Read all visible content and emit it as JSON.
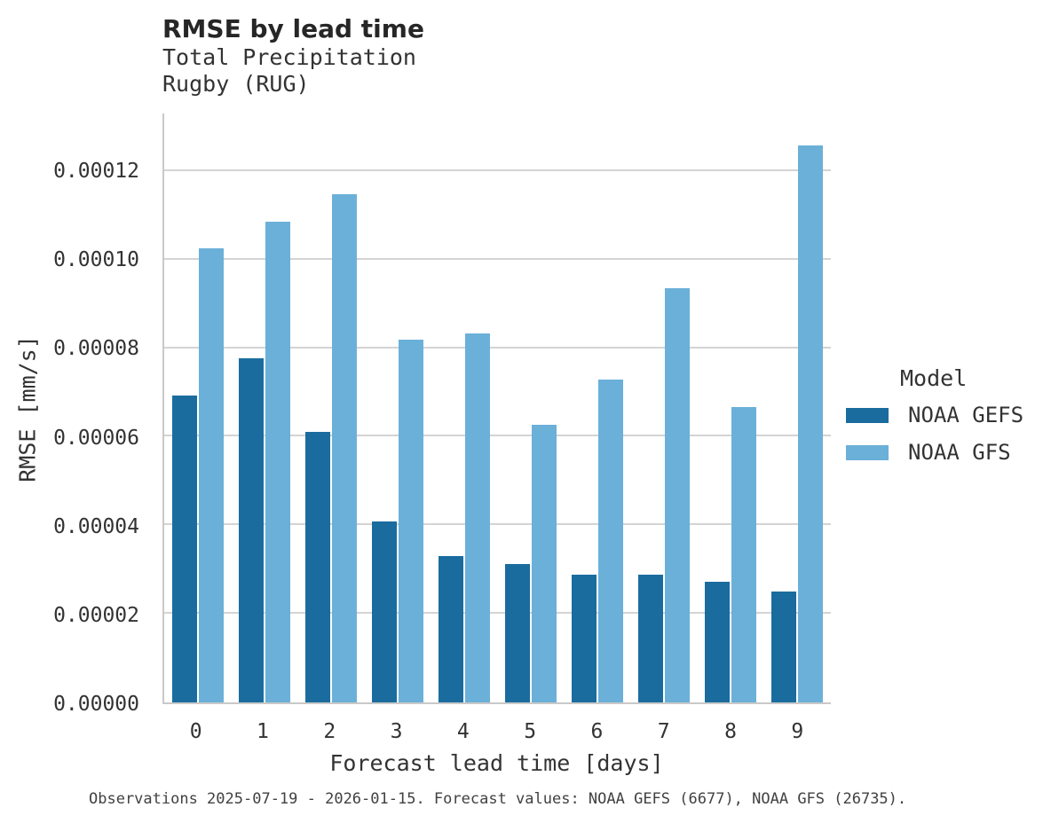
{
  "header": {
    "title": "RMSE by lead time",
    "subtitle_variable": "Total Precipitation",
    "subtitle_station": "Rugby (RUG)"
  },
  "footer": {
    "caption": "Observations 2025-07-19 - 2026-01-15. Forecast values: NOAA GEFS (6677), NOAA GFS (26735)."
  },
  "colors": {
    "gefs_dark_blue": "#1a6c9e",
    "gfs_light_blue": "#6bb0d9",
    "gridline_gray": "#d4d4d4",
    "axis_spine_gray": "#c9c9c9",
    "title_text": "#262626",
    "body_text": "#333333"
  },
  "chart_data": {
    "type": "bar",
    "title": "RMSE by lead time",
    "subtitle": [
      "Total Precipitation",
      "Rugby (RUG)"
    ],
    "xlabel": "Forecast lead time [days]",
    "ylabel": "RMSE [mm/s]",
    "categories": [
      "0",
      "1",
      "2",
      "3",
      "4",
      "5",
      "6",
      "7",
      "8",
      "9"
    ],
    "series": [
      {
        "name": "NOAA GEFS",
        "color": "#1a6c9e",
        "values": [
          6.94e-05,
          7.78e-05,
          6.11e-05,
          4.08e-05,
          3.31e-05,
          3.12e-05,
          2.89e-05,
          2.89e-05,
          2.73e-05,
          2.51e-05
        ]
      },
      {
        "name": "NOAA GFS",
        "color": "#6bb0d9",
        "values": [
          0.0001025,
          0.0001085,
          0.0001148,
          8.2e-05,
          8.33e-05,
          6.26e-05,
          7.29e-05,
          9.36e-05,
          6.68e-05,
          0.0001258
        ]
      }
    ],
    "ylim": [
      0,
      0.000133
    ],
    "yticks": [
      0,
      2e-05,
      4e-05,
      6e-05,
      8e-05,
      0.0001,
      0.00012
    ],
    "ytick_labels": [
      "0.00000",
      "0.00002",
      "0.00004",
      "0.00006",
      "0.00008",
      "0.00010",
      "0.00012"
    ],
    "grid": "horizontal",
    "legend_title": "Model",
    "legend_position": "right"
  }
}
